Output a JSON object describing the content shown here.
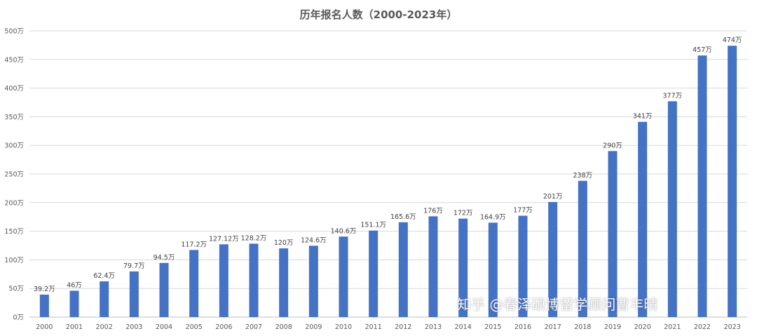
{
  "chart_data": {
    "type": "bar",
    "title": "历年报名人数（2000-2023年）",
    "categories": [
      "2000",
      "2001",
      "2002",
      "2003",
      "2004",
      "2005",
      "2006",
      "2007",
      "2008",
      "2009",
      "2010",
      "2011",
      "2012",
      "2013",
      "2014",
      "2015",
      "2016",
      "2017",
      "2018",
      "2019",
      "2020",
      "2021",
      "2022",
      "2023"
    ],
    "values": [
      39.2,
      46,
      62.4,
      79.7,
      94.5,
      117.2,
      127.12,
      128.2,
      120,
      124.6,
      140.6,
      151.1,
      165.6,
      176,
      172,
      164.9,
      177,
      201,
      238,
      290,
      341,
      377,
      457,
      474
    ],
    "data_labels": [
      "39.2万",
      "46万",
      "62.4万",
      "79.7万",
      "94.5万",
      "117.2万",
      "127.12万",
      "128.2万",
      "120万",
      "124.6万",
      "140.6万",
      "151.1万",
      "165.6万",
      "176万",
      "172万",
      "164.9万",
      "177万",
      "201万",
      "238万",
      "290万",
      "341万",
      "377万",
      "457万",
      "474万"
    ],
    "y_ticks": [
      "0万",
      "50万",
      "100万",
      "150万",
      "200万",
      "250万",
      "300万",
      "350万",
      "400万",
      "450万",
      "500万"
    ],
    "ylim": [
      0,
      500
    ],
    "grid": true,
    "legend": "none",
    "bar_color": "#4472C4",
    "grid_color": "#D9D9D9"
  },
  "watermark": "知乎 @春泽硕博留学顾问曹丰晴"
}
